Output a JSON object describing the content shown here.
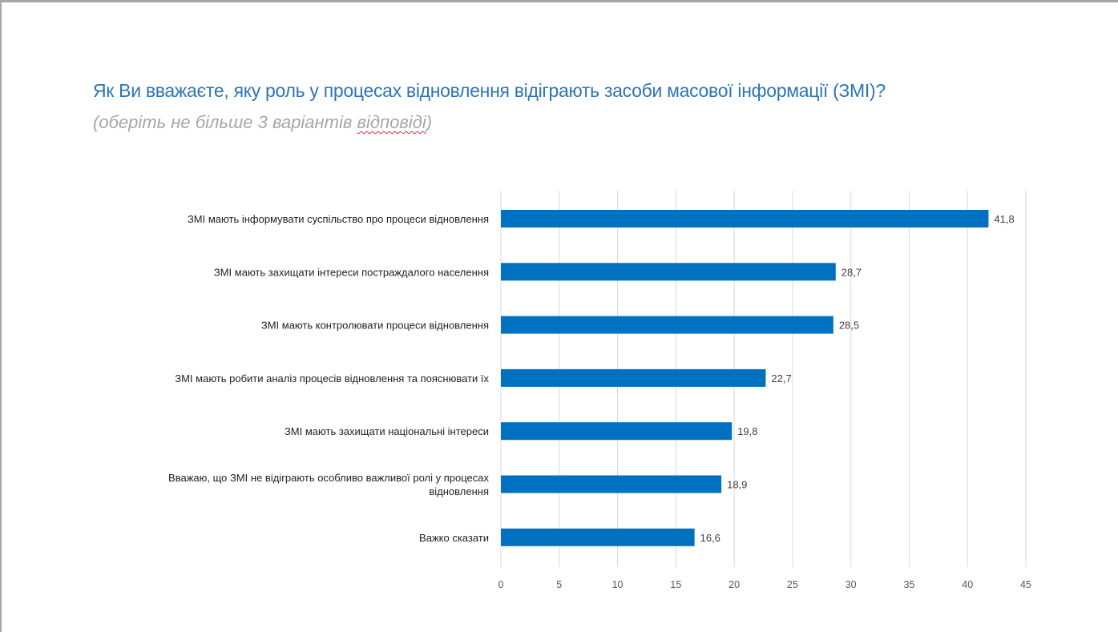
{
  "title": "Як Ви вважаєте, яку роль у процесах відновлення відіграють засоби масової інформації (ЗМІ)?",
  "subtitle_before": "(оберіть не більше 3 варіантів ",
  "subtitle_marked": "відповіді",
  "subtitle_after": ")",
  "colors": {
    "bar": "#0070c0",
    "grid": "#d9d9d9",
    "title": "#2e75b6"
  },
  "chart_data": {
    "type": "bar",
    "orientation": "horizontal",
    "categories": [
      [
        "ЗМІ мають інформувати суспільство про процеси відновлення"
      ],
      [
        "ЗМІ мають захищати інтереси постраждалого населення"
      ],
      [
        "ЗМІ мають контролювати процеси відновлення"
      ],
      [
        "ЗМІ мають робити аналіз процесів відновлення та пояснювати їх"
      ],
      [
        "ЗМІ мають захищати національні інтереси"
      ],
      [
        "Вважаю, що  ЗМІ не відіграють особливо важливої ролі у процесах",
        "відновлення"
      ],
      [
        "Важко сказати"
      ]
    ],
    "values": [
      41.8,
      28.7,
      28.5,
      22.7,
      19.8,
      18.9,
      16.6
    ],
    "value_labels": [
      "41,8",
      "28,7",
      "28,5",
      "22,7",
      "19,8",
      "18,9",
      "16,6"
    ],
    "xlim": [
      0,
      45
    ],
    "xticks": [
      0,
      5,
      10,
      15,
      20,
      25,
      30,
      35,
      40,
      45
    ],
    "grid": "vertical",
    "xlabel": "",
    "ylabel": ""
  }
}
